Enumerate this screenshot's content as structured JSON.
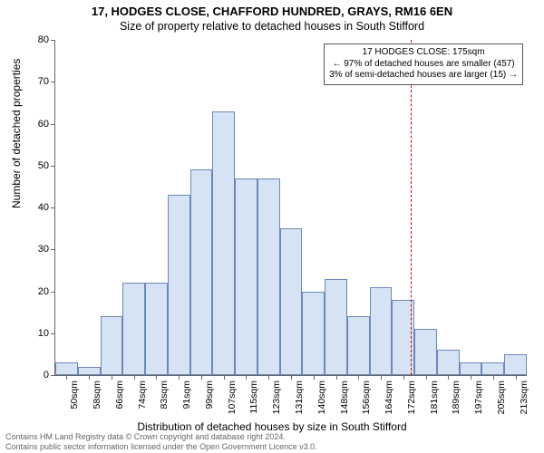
{
  "title_main": "17, HODGES CLOSE, CHAFFORD HUNDRED, GRAYS, RM16 6EN",
  "title_sub": "Size of property relative to detached houses in South Stifford",
  "ylabel": "Number of detached properties",
  "xlabel": "Distribution of detached houses by size in South Stifford",
  "footer_line1": "Contains HM Land Registry data © Crown copyright and database right 2024.",
  "footer_line2": "Contains public sector information licensed under the Open Government Licence v3.0.",
  "chart": {
    "type": "histogram",
    "ylim": [
      0,
      80
    ],
    "yticks": [
      0,
      10,
      20,
      30,
      40,
      50,
      60,
      70,
      80
    ],
    "xticks": [
      "50sqm",
      "58sqm",
      "66sqm",
      "74sqm",
      "83sqm",
      "91sqm",
      "99sqm",
      "107sqm",
      "115sqm",
      "123sqm",
      "131sqm",
      "140sqm",
      "148sqm",
      "156sqm",
      "164sqm",
      "172sqm",
      "181sqm",
      "189sqm",
      "197sqm",
      "205sqm",
      "213sqm"
    ],
    "values": [
      3,
      2,
      14,
      22,
      22,
      43,
      49,
      63,
      47,
      47,
      35,
      20,
      23,
      14,
      21,
      18,
      11,
      6,
      3,
      3,
      5
    ],
    "bar_fill": "#d6e3f5",
    "bar_stroke": "#6a89b8",
    "bar_stroke_width": 1,
    "bar_gap_ratio": 0.0,
    "background_color": "#ffffff",
    "axis_color": "#666666",
    "tick_fontsize": 11,
    "label_fontsize": 12,
    "title_fontsize": 13
  },
  "reference_line": {
    "value_sqm": 175,
    "dash_color": "#cc0000"
  },
  "annotation": {
    "line1": "17 HODGES CLOSE: 175sqm",
    "line2": "← 97% of detached houses are smaller (457)",
    "line3": "3% of semi-detached houses are larger (15) →"
  }
}
